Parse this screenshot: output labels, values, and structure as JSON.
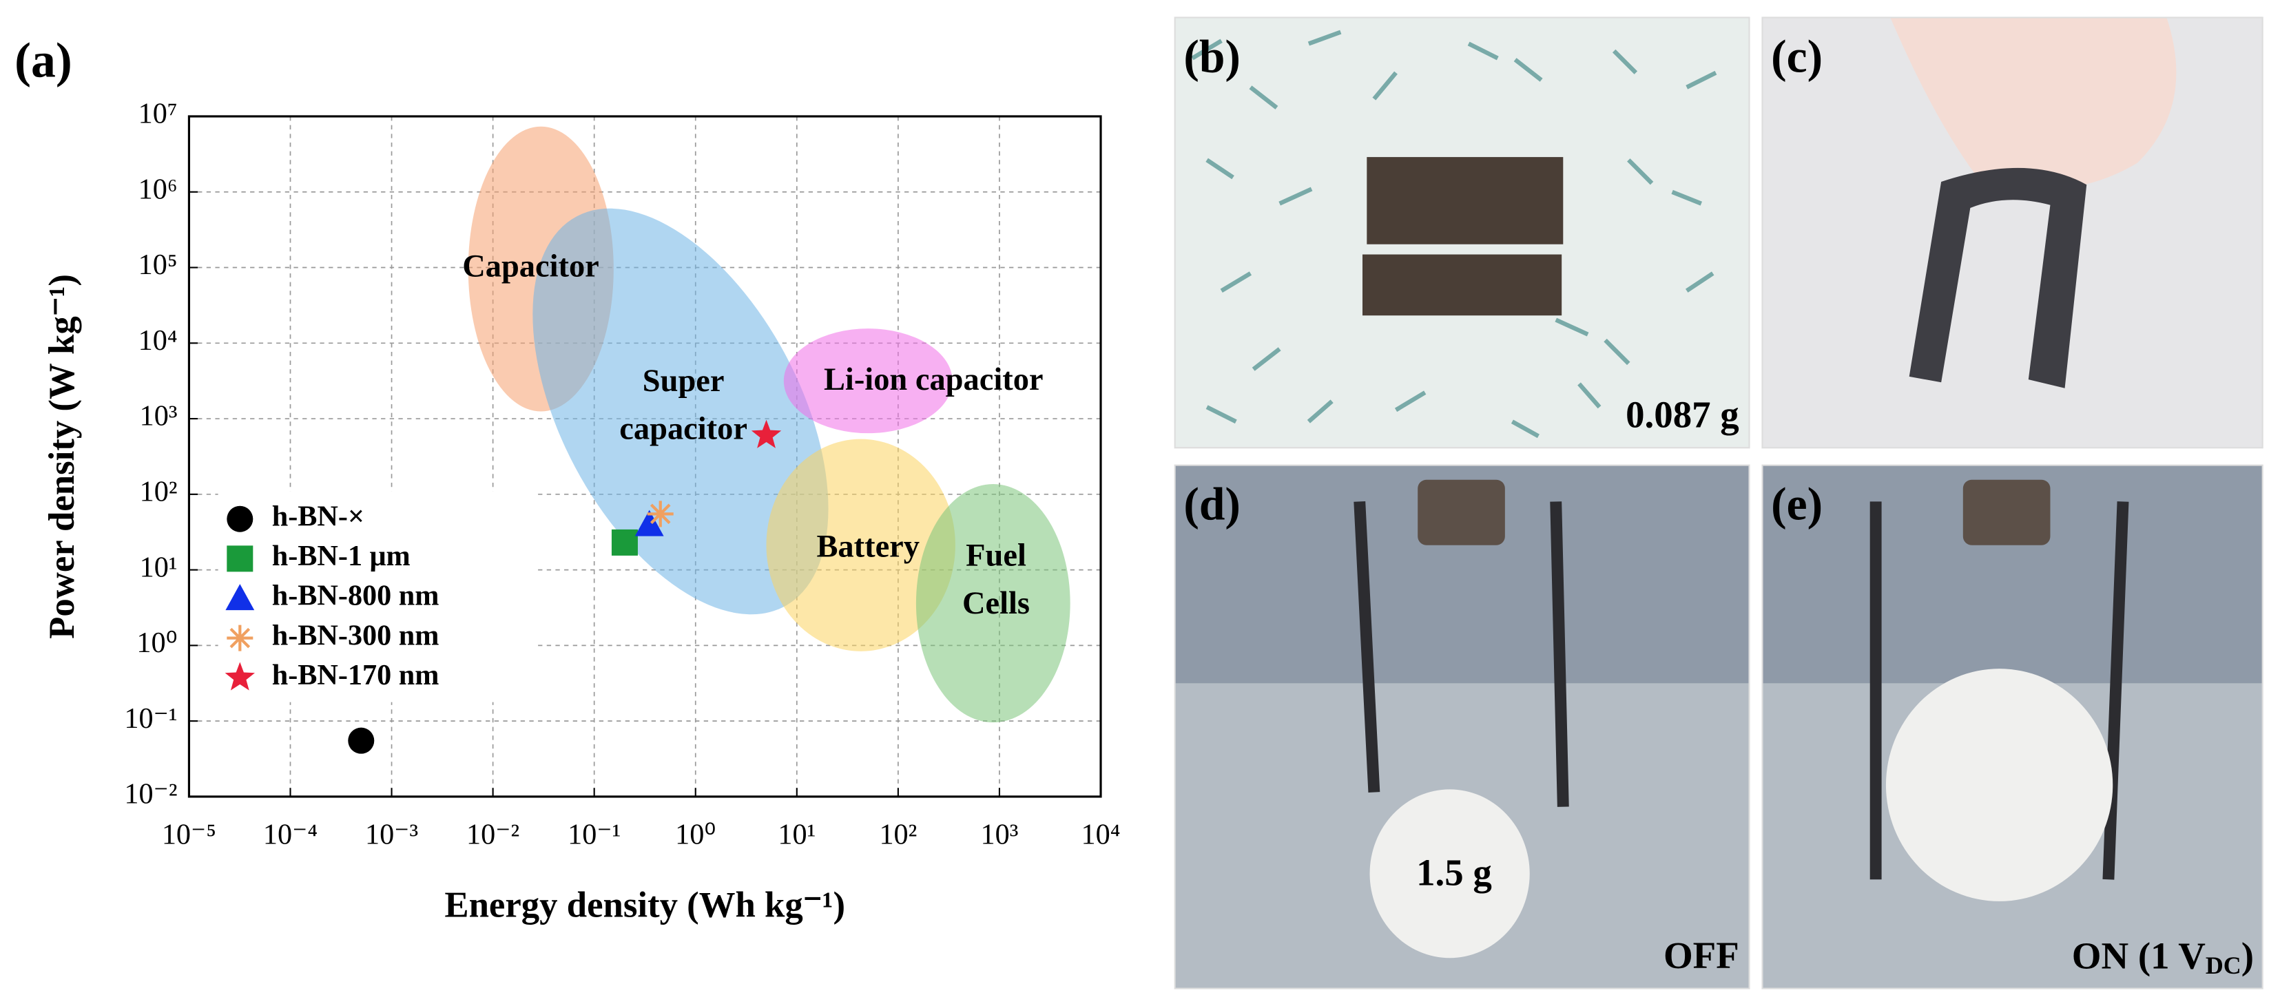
{
  "panel_label": "(a)",
  "chart_data": {
    "type": "scatter",
    "xlabel": "Energy density (Wh kg⁻¹)",
    "ylabel": "Power density (W kg⁻¹)",
    "xscale": "log",
    "yscale": "log",
    "grid": true,
    "legend": "lower left",
    "xlim": [
      1e-05,
      10000
    ],
    "ylim": [
      0.01,
      10000000
    ],
    "xticks": [
      {
        "value": 1e-05,
        "label": "10⁻⁵"
      },
      {
        "value": 0.0001,
        "label": "10⁻⁴"
      },
      {
        "value": 0.001,
        "label": "10⁻³"
      },
      {
        "value": 0.01,
        "label": "10⁻²"
      },
      {
        "value": 0.1,
        "label": "10⁻¹"
      },
      {
        "value": 1,
        "label": "10⁰"
      },
      {
        "value": 10,
        "label": "10¹"
      },
      {
        "value": 100,
        "label": "10²"
      },
      {
        "value": 1000,
        "label": "10³"
      },
      {
        "value": 10000,
        "label": "10⁴"
      }
    ],
    "yticks": [
      {
        "value": 0.01,
        "label": "10⁻²"
      },
      {
        "value": 0.1,
        "label": "10⁻¹"
      },
      {
        "value": 1,
        "label": "10⁰"
      },
      {
        "value": 10,
        "label": "10¹"
      },
      {
        "value": 100,
        "label": "10²"
      },
      {
        "value": 1000,
        "label": "10³"
      },
      {
        "value": 10000,
        "label": "10⁴"
      },
      {
        "value": 100000,
        "label": "10⁵"
      },
      {
        "value": 1000000,
        "label": "10⁶"
      },
      {
        "value": 10000000,
        "label": "10⁷"
      }
    ],
    "series": [
      {
        "name": "h-BN-×",
        "color": "#000000",
        "marker": "circle",
        "x": [
          0.0005
        ],
        "values": [
          0.055
        ]
      },
      {
        "name": "h-BN-1 μm",
        "color": "#1a9a3a",
        "marker": "square",
        "x": [
          0.2
        ],
        "values": [
          23
        ]
      },
      {
        "name": "h-BN-800 nm",
        "color": "#1030e8",
        "marker": "triangle",
        "x": [
          0.35
        ],
        "values": [
          40
        ]
      },
      {
        "name": "h-BN-300 nm",
        "color": "#f0a060",
        "marker": "asterisk",
        "x": [
          0.45
        ],
        "values": [
          55
        ]
      },
      {
        "name": "h-BN-170 nm",
        "color": "#e8203a",
        "marker": "star",
        "x": [
          5
        ],
        "values": [
          600
        ]
      }
    ],
    "regions": [
      {
        "label": [
          "Capacitor"
        ],
        "color": "#f5a070"
      },
      {
        "label": [
          "Super",
          "capacitor"
        ],
        "color": "#6fb4e6"
      },
      {
        "label": [
          "Li-ion capacitor"
        ],
        "color": "#f070e8"
      },
      {
        "label": [
          "Battery"
        ],
        "color": "#fcd460"
      },
      {
        "label": [
          "Fuel",
          "Cells"
        ],
        "color": "#7cc47a"
      }
    ]
  },
  "photos": [
    {
      "label": "(b)",
      "annotation": [
        "0.087 g"
      ]
    },
    {
      "label": "(c)",
      "annotation": []
    },
    {
      "label": "(d)",
      "annotation": [
        "1.5 g",
        "OFF"
      ]
    },
    {
      "label": "(e)",
      "annotation": [
        "ON (1 V",
        "DC",
        ")"
      ]
    }
  ]
}
